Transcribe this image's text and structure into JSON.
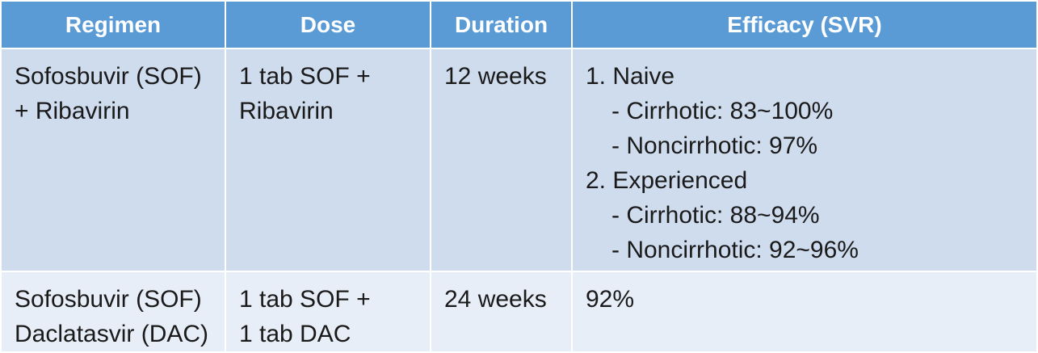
{
  "table": {
    "headers": [
      "Regimen",
      "Dose",
      "Duration",
      "Efficacy (SVR)"
    ],
    "rows": [
      {
        "regimen": [
          "Sofosbuvir (SOF)",
          "+ Ribavirin"
        ],
        "dose": [
          "1 tab SOF +",
          "Ribavirin"
        ],
        "duration": "12 weeks",
        "efficacy": {
          "naive_label": "1. Naive",
          "naive_cirrhotic": "- Cirrhotic: 83~100%",
          "naive_noncirrhotic": "- Noncirrhotic: 97%",
          "experienced_label": "2. Experienced",
          "experienced_cirrhotic": "- Cirrhotic: 88~94%",
          "experienced_noncirrhotic": "- Noncirrhotic: 92~96%"
        }
      },
      {
        "regimen": [
          "Sofosbuvir (SOF)",
          "Daclatasvir (DAC)"
        ],
        "dose": [
          "1 tab SOF +",
          "1 tab DAC"
        ],
        "duration": "24 weeks",
        "efficacy": "92%"
      }
    ]
  },
  "colors": {
    "header_bg": "#5b9bd5",
    "header_text": "#ffffff",
    "row_1_bg": "#cfdcee",
    "row_2_bg": "#e8eef7"
  }
}
